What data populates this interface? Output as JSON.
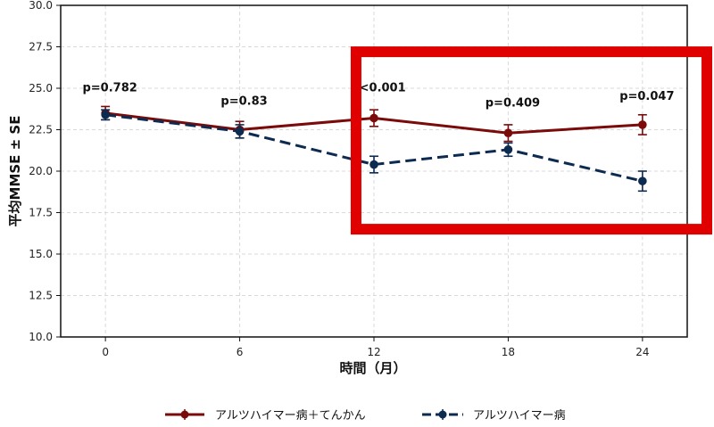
{
  "chart_data": {
    "type": "line",
    "x": [
      0,
      6,
      12,
      18,
      24
    ],
    "xlabel": "時間（月）",
    "ylabel": "平均MMSE ± SE",
    "ylim": [
      10.0,
      30.0
    ],
    "yticks": [
      "10.0",
      "12.5",
      "15.0",
      "17.5",
      "20.0",
      "22.5",
      "25.0",
      "27.5",
      "30.0"
    ],
    "xticks": [
      "0",
      "6",
      "12",
      "18",
      "24"
    ],
    "grid": true,
    "legend_position": "bottom-center",
    "series": [
      {
        "name": "アルツハイマー病＋てんかん",
        "values": [
          23.5,
          22.5,
          23.2,
          22.3,
          22.8
        ],
        "se": [
          0.4,
          0.5,
          0.5,
          0.5,
          0.6
        ],
        "color": "#7b0a0a",
        "line_style": "solid"
      },
      {
        "name": "アルツハイマー病",
        "values": [
          23.4,
          22.4,
          20.4,
          21.3,
          19.4
        ],
        "se": [
          0.3,
          0.4,
          0.5,
          0.4,
          0.6
        ],
        "color": "#0d2a50",
        "line_style": "dashed"
      }
    ],
    "annotations": [
      "p=0.782",
      "p=0.83",
      "p<0.001",
      "p=0.409",
      "p=0.047"
    ],
    "annotation_y": [
      24.8,
      24.0,
      24.8,
      23.9,
      24.3
    ],
    "highlight": {
      "color": "#e00000",
      "x_range": [
        11.2,
        27.0
      ],
      "y_range": [
        16.5,
        27.2
      ]
    }
  }
}
